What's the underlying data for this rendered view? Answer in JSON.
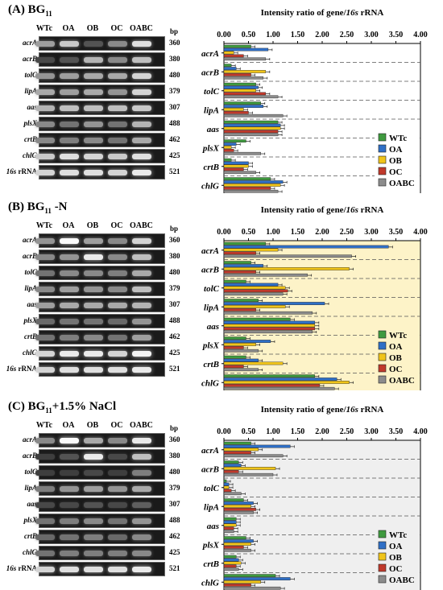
{
  "lanes": [
    "WTc",
    "OA",
    "OB",
    "OC",
    "OABC"
  ],
  "bp_header": "bp",
  "genes": [
    "acrA",
    "acrB",
    "tolC",
    "lipA",
    "aas",
    "plsX",
    "crtB",
    "chlG"
  ],
  "gel_rows": [
    {
      "name": "acrA",
      "bp": "360"
    },
    {
      "name": "acrB",
      "bp": "380"
    },
    {
      "name": "tolC",
      "bp": "480"
    },
    {
      "name": "lipA",
      "bp": "379"
    },
    {
      "name": "aas",
      "bp": "307"
    },
    {
      "name": "plsX",
      "bp": "488"
    },
    {
      "name": "crtB",
      "bp": "462"
    },
    {
      "name": "chlG",
      "bp": "425"
    },
    {
      "name_italic": "16s",
      "name_plain": " rRNA",
      "bp": "521"
    }
  ],
  "colors": {
    "WTc": "#3f9a3f",
    "OA": "#2f6fc6",
    "OB": "#f0c419",
    "OC": "#c0392b",
    "OABC": "#8c8c8c"
  },
  "panels": [
    {
      "key": "A",
      "title_prefix": "(A) BG",
      "title_sub": "11",
      "title_suffix": "",
      "background": "#ffffff",
      "band_intensity": [
        [
          0.55,
          0.75,
          0.2,
          0.45,
          0.85
        ],
        [
          0.15,
          0.2,
          0.65,
          0.45,
          0.7
        ],
        [
          0.5,
          0.55,
          0.6,
          0.6,
          0.8
        ],
        [
          0.6,
          0.55,
          0.6,
          0.5,
          0.8
        ],
        [
          0.65,
          0.7,
          0.7,
          0.7,
          0.75
        ],
        [
          0.45,
          0.35,
          0.5,
          0.35,
          0.65
        ],
        [
          0.45,
          0.4,
          0.45,
          0.35,
          0.6
        ],
        [
          0.75,
          0.85,
          0.8,
          0.75,
          0.85
        ],
        [
          0.8,
          0.85,
          0.85,
          0.8,
          0.9
        ]
      ]
    },
    {
      "key": "B",
      "title_prefix": "(B) BG",
      "title_sub": "11",
      "title_suffix": " -N",
      "background": "#fdf3c8",
      "band_intensity": [
        [
          0.5,
          0.98,
          0.55,
          0.45,
          0.8
        ],
        [
          0.45,
          0.5,
          0.9,
          0.45,
          0.7
        ],
        [
          0.35,
          0.45,
          0.45,
          0.4,
          0.6
        ],
        [
          0.45,
          0.55,
          0.5,
          0.45,
          0.7
        ],
        [
          0.55,
          0.6,
          0.6,
          0.6,
          0.65
        ],
        [
          0.3,
          0.35,
          0.35,
          0.3,
          0.5
        ],
        [
          0.35,
          0.4,
          0.45,
          0.35,
          0.55
        ],
        [
          0.8,
          0.9,
          0.9,
          0.8,
          0.95
        ],
        [
          0.8,
          0.85,
          0.85,
          0.85,
          0.9
        ]
      ]
    },
    {
      "key": "C",
      "title_prefix": "(C) BG",
      "title_sub": "11",
      "title_suffix": "+1.5% NaCl",
      "background": "#efefef",
      "band_intensity": [
        [
          0.45,
          0.98,
          0.6,
          0.45,
          0.9
        ],
        [
          0.1,
          0.2,
          0.9,
          0.15,
          0.7
        ],
        [
          0.1,
          0.1,
          0.15,
          0.1,
          0.4
        ],
        [
          0.4,
          0.5,
          0.55,
          0.5,
          0.6
        ],
        [
          0.15,
          0.15,
          0.2,
          0.15,
          0.25
        ],
        [
          0.35,
          0.4,
          0.45,
          0.35,
          0.5
        ],
        [
          0.3,
          0.35,
          0.4,
          0.3,
          0.45
        ],
        [
          0.35,
          0.4,
          0.4,
          0.4,
          0.45
        ],
        [
          0.8,
          0.85,
          0.85,
          0.85,
          0.9
        ]
      ]
    }
  ],
  "chart_data": [
    {
      "type": "bar",
      "orientation": "horizontal",
      "title_parts": [
        "Intensity ratio of gene/",
        "16s",
        " rRNA"
      ],
      "xlim": [
        0,
        4
      ],
      "ticks": [
        "0.00",
        "0.50",
        "1.00",
        "1.50",
        "2.00",
        "2.50",
        "3.00",
        "3.50",
        "4.00"
      ],
      "categories": [
        "acrA",
        "acrB",
        "tolC",
        "lipA",
        "aas",
        "plsX",
        "crtB",
        "chlG"
      ],
      "legend_position": "right",
      "series": [
        {
          "name": "WTc",
          "values": [
            0.55,
            0.15,
            0.65,
            0.75,
            1.1,
            0.45,
            0.15,
            0.95
          ]
        },
        {
          "name": "OA",
          "values": [
            0.9,
            0.25,
            0.7,
            0.8,
            1.15,
            0.25,
            0.5,
            1.2
          ]
        },
        {
          "name": "OB",
          "values": [
            0.2,
            0.85,
            0.65,
            0.4,
            1.15,
            0.15,
            0.5,
            1.15
          ]
        },
        {
          "name": "OC",
          "values": [
            0.4,
            0.55,
            0.85,
            0.5,
            1.1,
            0.2,
            0.4,
            0.95
          ]
        },
        {
          "name": "OABC",
          "values": [
            0.85,
            0.8,
            1.1,
            1.2,
            1.1,
            0.75,
            0.65,
            1.1
          ]
        }
      ]
    },
    {
      "type": "bar",
      "orientation": "horizontal",
      "title_parts": [
        "Intensity ratio of gene/",
        "16s",
        " rRNA"
      ],
      "xlim": [
        0,
        4
      ],
      "ticks": [
        "0.00",
        "0.50",
        "1.00",
        "1.50",
        "2.00",
        "2.50",
        "3.00",
        "3.50",
        "4.00"
      ],
      "categories": [
        "acrA",
        "acrB",
        "tolC",
        "lipA",
        "aas",
        "plsX",
        "crtB",
        "chlG"
      ],
      "legend_position": "right",
      "series": [
        {
          "name": "WTc",
          "values": [
            0.85,
            0.55,
            0.45,
            0.7,
            1.35,
            0.45,
            0.45,
            1.85
          ]
        },
        {
          "name": "OA",
          "values": [
            3.35,
            0.8,
            1.1,
            2.05,
            1.85,
            0.95,
            0.7,
            2.3
          ]
        },
        {
          "name": "OB",
          "values": [
            1.1,
            2.55,
            1.25,
            1.25,
            1.85,
            0.65,
            1.2,
            2.55
          ]
        },
        {
          "name": "OC",
          "values": [
            0.65,
            0.65,
            1.3,
            0.65,
            1.85,
            0.4,
            0.4,
            1.95
          ]
        },
        {
          "name": "OABC",
          "values": [
            2.6,
            1.7,
            1.2,
            1.8,
            1.8,
            0.7,
            0.7,
            2.25
          ]
        }
      ]
    },
    {
      "type": "bar",
      "orientation": "horizontal",
      "title_parts": [
        "Intensity ratio of gene/",
        "16s",
        " rRNA"
      ],
      "xlim": [
        0,
        4
      ],
      "ticks": [
        "0.00",
        "0.50",
        "1.00",
        "1.50",
        "2.00",
        "2.50",
        "3.00",
        "3.50",
        "4.00"
      ],
      "categories": [
        "acrA",
        "acrB",
        "tolC",
        "lipA",
        "aas",
        "plsX",
        "crtB",
        "chlG"
      ],
      "legend_position": "right",
      "series": [
        {
          "name": "WTc",
          "values": [
            0.55,
            0.3,
            0.05,
            0.4,
            0.25,
            0.45,
            0.25,
            1.05
          ]
        },
        {
          "name": "OA",
          "values": [
            1.35,
            0.35,
            0.1,
            0.6,
            0.25,
            0.6,
            0.3,
            1.35
          ]
        },
        {
          "name": "OB",
          "values": [
            0.7,
            1.05,
            0.1,
            0.55,
            0.25,
            0.55,
            0.35,
            0.75
          ]
        },
        {
          "name": "OC",
          "values": [
            0.55,
            0.3,
            0.15,
            0.65,
            0.2,
            0.4,
            0.25,
            0.55
          ]
        },
        {
          "name": "OABC",
          "values": [
            1.2,
            1.0,
            0.35,
            0.6,
            0.2,
            0.55,
            0.3,
            1.15
          ]
        }
      ]
    }
  ]
}
